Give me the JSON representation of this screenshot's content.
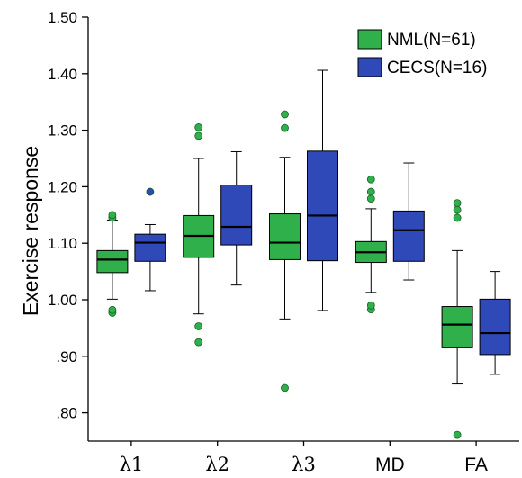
{
  "chart_data": {
    "type": "boxplot",
    "ylabel": "Exercise response",
    "ylim": [
      0.75,
      1.5
    ],
    "yticks": [
      0.8,
      0.9,
      1.0,
      1.1,
      1.2,
      1.3,
      1.4,
      1.5
    ],
    "ytick_labels": [
      ".80",
      ".90",
      "1.00",
      "1.10",
      "1.20",
      "1.30",
      "1.40",
      "1.50"
    ],
    "categories": [
      "λ1",
      "λ2",
      "λ3",
      "MD",
      "FA"
    ],
    "series": [
      {
        "name": "NML(N=61)",
        "color": "#2fb04a",
        "boxes": [
          {
            "whisker_low": 1.001,
            "q1": 1.048,
            "median": 1.071,
            "q3": 1.087,
            "whisker_high": 1.141,
            "outliers": [
              0.977,
              0.982,
              1.145,
              1.15
            ]
          },
          {
            "whisker_low": 0.975,
            "q1": 1.075,
            "median": 1.113,
            "q3": 1.149,
            "whisker_high": 1.25,
            "outliers": [
              0.925,
              0.953,
              1.29,
              1.305
            ]
          },
          {
            "whisker_low": 0.966,
            "q1": 1.071,
            "median": 1.101,
            "q3": 1.152,
            "whisker_high": 1.252,
            "outliers": [
              0.844,
              1.304,
              1.328
            ]
          },
          {
            "whisker_low": 1.013,
            "q1": 1.066,
            "median": 1.084,
            "q3": 1.103,
            "whisker_high": 1.161,
            "outliers": [
              0.983,
              0.99,
              1.179,
              1.191,
              1.213
            ]
          },
          {
            "whisker_low": 0.851,
            "q1": 0.915,
            "median": 0.956,
            "q3": 0.988,
            "whisker_high": 1.087,
            "outliers": [
              0.761,
              1.145,
              1.159,
              1.171
            ]
          }
        ]
      },
      {
        "name": "CECS(N=16)",
        "color": "#2f49b8",
        "boxes": [
          {
            "whisker_low": 1.016,
            "q1": 1.068,
            "median": 1.101,
            "q3": 1.116,
            "whisker_high": 1.133,
            "outliers": [
              1.191
            ]
          },
          {
            "whisker_low": 1.026,
            "q1": 1.097,
            "median": 1.129,
            "q3": 1.203,
            "whisker_high": 1.262,
            "outliers": []
          },
          {
            "whisker_low": 0.981,
            "q1": 1.069,
            "median": 1.149,
            "q3": 1.263,
            "whisker_high": 1.406,
            "outliers": []
          },
          {
            "whisker_low": 1.035,
            "q1": 1.068,
            "median": 1.123,
            "q3": 1.157,
            "whisker_high": 1.242,
            "outliers": []
          },
          {
            "whisker_low": 0.868,
            "q1": 0.903,
            "median": 0.941,
            "q3": 1.001,
            "whisker_high": 1.05,
            "outliers": []
          }
        ]
      }
    ],
    "legend_position": "top-right",
    "grid": false
  }
}
